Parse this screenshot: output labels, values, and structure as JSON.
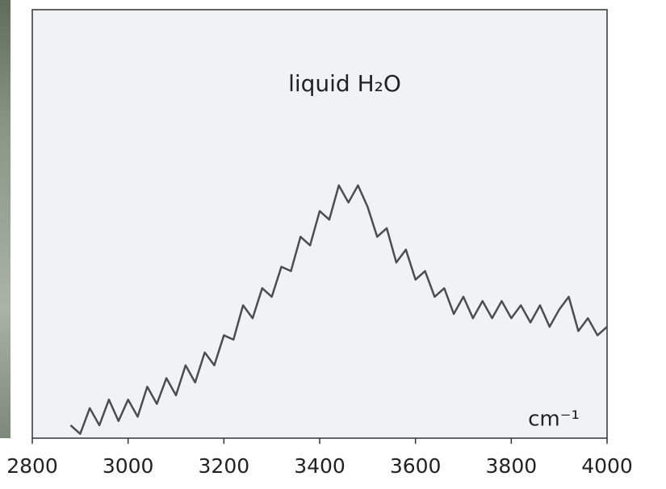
{
  "chart_data": {
    "type": "line",
    "title": "liquid H₂O",
    "x_label": "cm⁻¹",
    "xlim": [
      2800,
      4000
    ],
    "xticks": [
      2800,
      3000,
      3200,
      3400,
      3600,
      3800,
      4000
    ],
    "ylim": [
      0,
      100
    ],
    "x": [
      2880,
      2900,
      2920,
      2940,
      2960,
      2980,
      3000,
      3020,
      3040,
      3060,
      3080,
      3100,
      3120,
      3140,
      3160,
      3180,
      3200,
      3220,
      3240,
      3260,
      3280,
      3300,
      3320,
      3340,
      3360,
      3380,
      3400,
      3420,
      3440,
      3460,
      3480,
      3500,
      3520,
      3540,
      3560,
      3580,
      3600,
      3620,
      3640,
      3660,
      3680,
      3700,
      3720,
      3740,
      3760,
      3780,
      3800,
      3820,
      3840,
      3860,
      3880,
      3900,
      3920,
      3940,
      3960,
      3980,
      4000
    ],
    "series": [
      {
        "color": "#4d4d4d",
        "values": [
          3,
          1,
          7,
          3,
          9,
          4,
          9,
          5,
          12,
          8,
          14,
          10,
          17,
          13,
          20,
          17,
          24,
          23,
          31,
          28,
          35,
          33,
          40,
          39,
          47,
          45,
          53,
          51,
          59,
          55,
          59,
          54,
          47,
          49,
          41,
          44,
          37,
          39,
          33,
          35,
          29,
          33,
          28,
          32,
          28,
          32,
          28,
          31,
          27,
          31,
          26,
          30,
          33,
          25,
          28,
          24,
          26
        ]
      }
    ]
  }
}
